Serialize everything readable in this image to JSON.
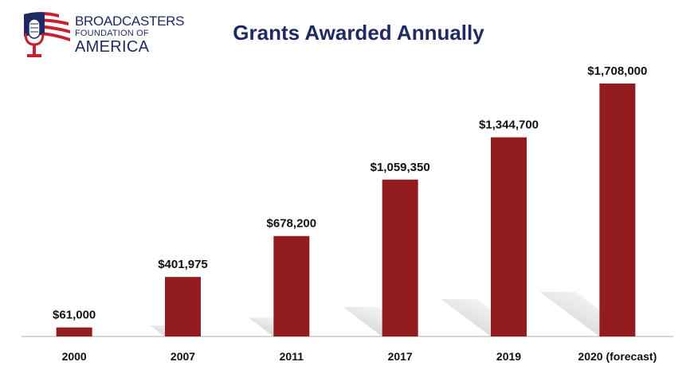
{
  "logo": {
    "line1": "BROADCASTERS",
    "line2": "FOUNDATION OF",
    "line3": "AMERICA",
    "colors": {
      "red": "#c8202e",
      "blue": "#1f2a63"
    }
  },
  "chart_data": {
    "type": "bar",
    "title": "Grants Awarded Annually",
    "categories": [
      "2000",
      "2007",
      "2011",
      "2017",
      "2019",
      "2020 (forecast)"
    ],
    "values": [
      61000,
      401975,
      678200,
      1059350,
      1344700,
      1708000
    ],
    "value_labels": [
      "$61,000",
      "$401,975",
      "$678,200",
      "$1,059,350",
      "$1,344,700",
      "$1,708,000"
    ],
    "xlabel": "",
    "ylabel": "",
    "ylim": [
      0,
      1708000
    ],
    "grid": false,
    "bar_color": "#931c1f"
  }
}
